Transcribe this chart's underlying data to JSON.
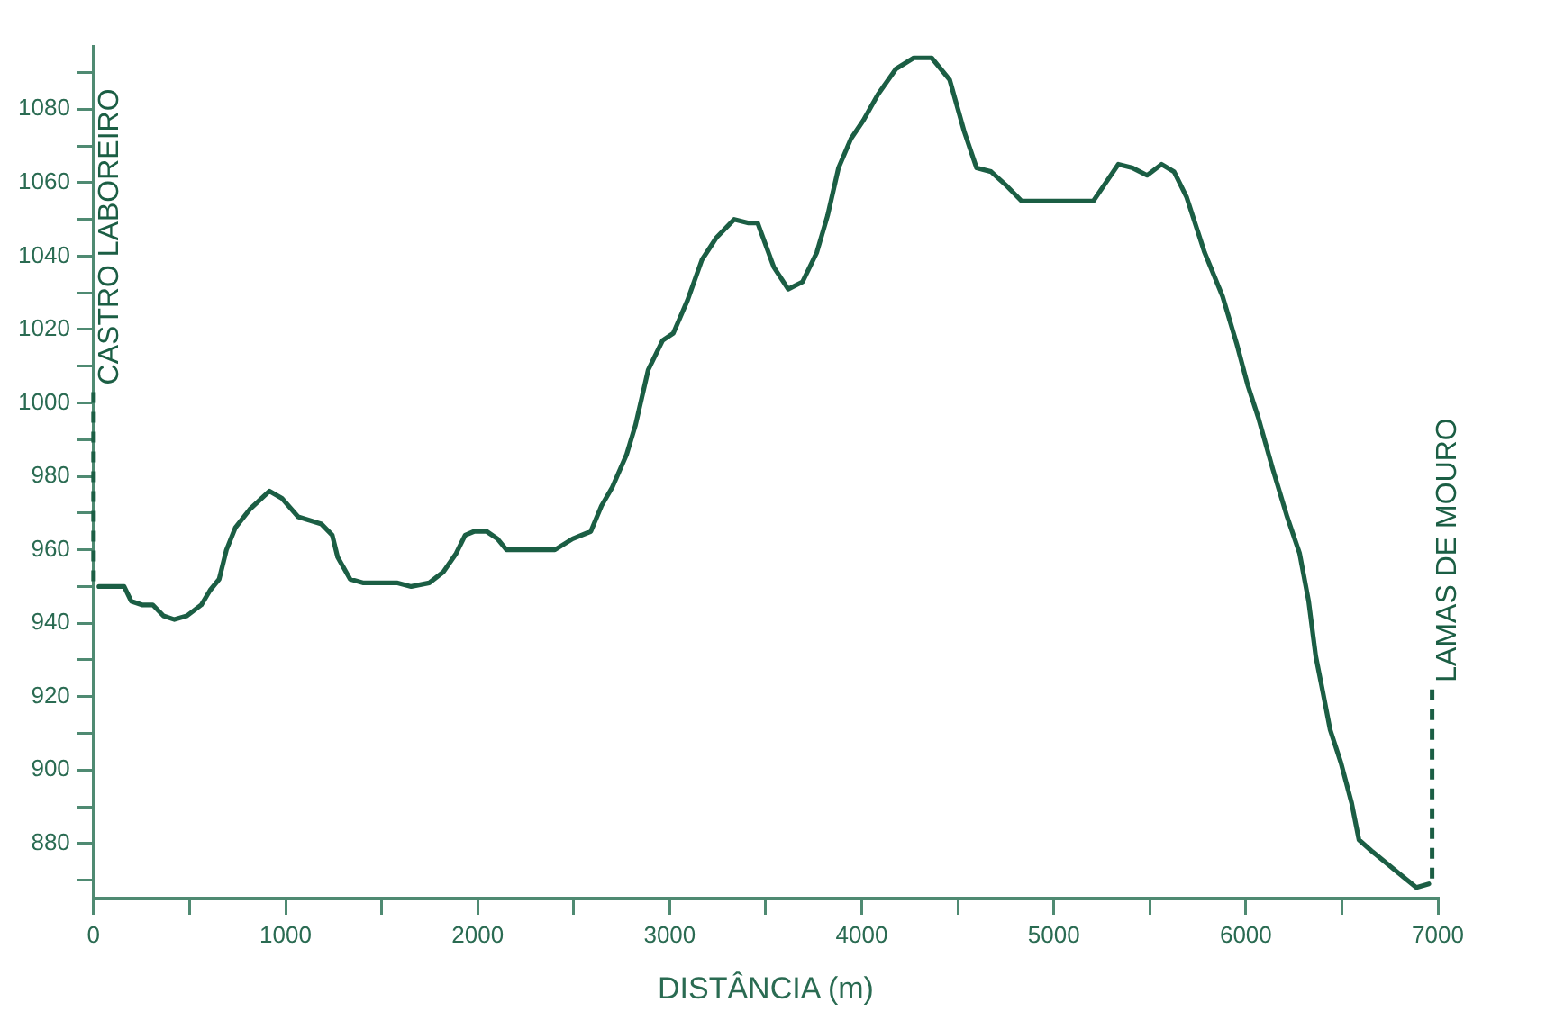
{
  "chart_data": {
    "type": "line",
    "xlabel": "DISTÂNCIA (m)",
    "x": [
      28,
      159,
      196,
      252,
      308,
      364,
      421,
      486,
      561,
      607,
      654,
      692,
      738,
      813,
      916,
      981,
      1065,
      1187,
      1243,
      1271,
      1336,
      1402,
      1486,
      1579,
      1654,
      1748,
      1822,
      1888,
      1935,
      1981,
      2047,
      2103,
      2150,
      2262,
      2402,
      2495,
      2589,
      2645,
      2701,
      2776,
      2822,
      2888,
      2963,
      3019,
      3093,
      3168,
      3243,
      3336,
      3411,
      3458,
      3542,
      3617,
      3692,
      3766,
      3822,
      3879,
      3944,
      4009,
      4084,
      4178,
      4271,
      4364,
      4458,
      4533,
      4598,
      4673,
      4757,
      4832,
      5019,
      5206,
      5271,
      5336,
      5411,
      5486,
      5561,
      5626,
      5692,
      5785,
      5879,
      5953,
      6009,
      6065,
      6140,
      6215,
      6280,
      6327,
      6364,
      6402,
      6439,
      6495,
      6551,
      6589,
      6654,
      6794,
      6888,
      6953
    ],
    "series": [
      {
        "color": "#1b5e44",
        "values": [
          950,
          950,
          946,
          945,
          945,
          942,
          941,
          942,
          945,
          949,
          952,
          960,
          966,
          971,
          976,
          974,
          969,
          967,
          964,
          958,
          952,
          951,
          951,
          951,
          950,
          951,
          954,
          959,
          964,
          965,
          965,
          963,
          960,
          960,
          960,
          963,
          965,
          972,
          977,
          986,
          994,
          1009,
          1017,
          1019,
          1028,
          1039,
          1045,
          1050,
          1049,
          1049,
          1037,
          1031,
          1033,
          1041,
          1051,
          1064,
          1072,
          1077,
          1084,
          1091,
          1094,
          1094,
          1088,
          1074,
          1064,
          1063,
          1059,
          1055,
          1055,
          1055,
          1060,
          1065,
          1064,
          1062,
          1065,
          1063,
          1056,
          1041,
          1029,
          1016,
          1005,
          996,
          982,
          969,
          959,
          946,
          931,
          921,
          911,
          902,
          891,
          881,
          878,
          872,
          868,
          869
        ]
      }
    ],
    "xlim": [
      0,
      7000
    ],
    "xticks": [
      0,
      {
        "value": 500,
        "label": null
      },
      1000,
      {
        "value": 1500,
        "label": null
      },
      2000,
      {
        "value": 2500,
        "label": null
      },
      3000,
      {
        "value": 3500,
        "label": null
      },
      4000,
      {
        "value": 4500,
        "label": null
      },
      5000,
      {
        "value": 5500,
        "label": null
      },
      6000,
      {
        "value": 6500,
        "label": null
      },
      7000
    ],
    "ylim": [
      865,
      1097
    ],
    "yticks": [
      {
        "value": 870,
        "label": null
      },
      880,
      {
        "value": 890,
        "label": null
      },
      900,
      {
        "value": 910,
        "label": null
      },
      920,
      {
        "value": 930,
        "label": null
      },
      940,
      {
        "value": 950,
        "label": null
      },
      960,
      {
        "value": 970,
        "label": null
      },
      980,
      {
        "value": 990,
        "label": null
      },
      1000,
      {
        "value": 1010,
        "label": null
      },
      1020,
      {
        "value": 1030,
        "label": null
      },
      1040,
      {
        "value": 1050,
        "label": null
      },
      1060,
      {
        "value": 1070,
        "label": null
      },
      1080,
      {
        "value": 1090,
        "label": null
      }
    ],
    "ref_lines": [
      {
        "axis": "x",
        "value": 0,
        "label": "CASTRO LABOREIRO",
        "color": "#1b5e44",
        "line_style": "dashed"
      },
      {
        "axis": "x",
        "value": 6970,
        "label": "LAMAS DE MOURO",
        "color": "#1b5e44",
        "line_style": "dashed"
      }
    ],
    "grid": false,
    "legend": false,
    "marker": "none",
    "line_style": "solid"
  }
}
